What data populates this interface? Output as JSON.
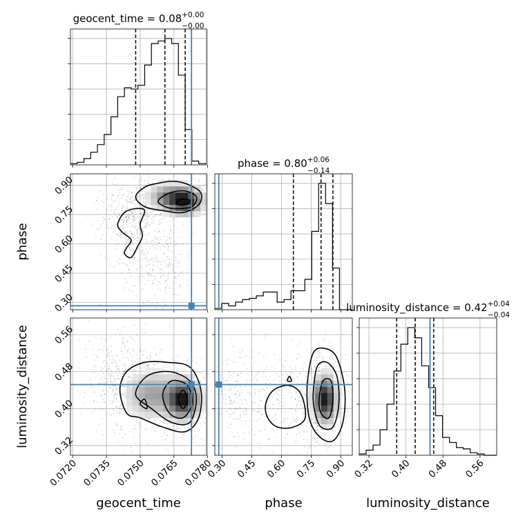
{
  "chart_data": {
    "type": "corner",
    "parameters": [
      "geocent_time",
      "phase",
      "luminosity_distance"
    ],
    "truth": {
      "geocent_time": 0.07728,
      "phase": 0.283,
      "luminosity_distance": 0.452
    },
    "titles": [
      {
        "name": "geocent_time",
        "value": "0.08",
        "upper": "+0.00",
        "lower": "−0.00"
      },
      {
        "name": "phase",
        "value": "0.80",
        "upper": "+0.06",
        "lower": "−0.14"
      },
      {
        "name": "luminosity_distance",
        "value": "0.42",
        "upper": "+0.04",
        "lower": "−0.04"
      }
    ],
    "axes": {
      "geocent_time": {
        "range": [
          0.0719,
          0.07795
        ],
        "ticks": [
          "0.0720",
          "0.0735",
          "0.0750",
          "0.0765",
          "0.0780"
        ],
        "tick_values": [
          0.072,
          0.0735,
          0.075,
          0.0765,
          0.078
        ]
      },
      "phase": {
        "range": [
          0.263,
          0.958
        ],
        "ticks": [
          "0.30",
          "0.45",
          "0.60",
          "0.75",
          "0.90"
        ],
        "tick_values": [
          0.3,
          0.45,
          0.6,
          0.75,
          0.9
        ]
      },
      "luminosity_distance": {
        "range": [
          0.299,
          0.596
        ],
        "ticks": [
          "0.32",
          "0.40",
          "0.48",
          "0.56"
        ],
        "tick_values": [
          0.32,
          0.4,
          0.48,
          0.56
        ]
      }
    },
    "histograms": {
      "geocent_time": {
        "bin_edges": [
          0.0719,
          0.0722,
          0.0725,
          0.0728,
          0.0731,
          0.0734,
          0.0737,
          0.074,
          0.0743,
          0.0746,
          0.0749,
          0.0752,
          0.0755,
          0.0758,
          0.0761,
          0.0764,
          0.0767,
          0.077,
          0.0773,
          0.0776,
          0.07795
        ],
        "counts": [
          1,
          2,
          5,
          10,
          16,
          24,
          38,
          54,
          61,
          60,
          63,
          79,
          96,
          98,
          100,
          96,
          71,
          28,
          3,
          1
        ],
        "quantiles": [
          0.0748,
          0.0761,
          0.077
        ]
      },
      "phase": {
        "bin_edges": [
          0.263,
          0.298,
          0.333,
          0.368,
          0.403,
          0.438,
          0.473,
          0.508,
          0.543,
          0.578,
          0.613,
          0.648,
          0.683,
          0.718,
          0.753,
          0.788,
          0.823,
          0.858,
          0.893,
          0.923,
          0.958
        ],
        "counts": [
          1,
          5,
          3,
          6,
          8,
          9,
          11,
          14,
          14,
          6,
          8,
          15,
          15,
          24,
          62,
          100,
          84,
          33,
          0,
          0
        ],
        "quantiles": [
          0.66,
          0.8,
          0.86
        ]
      },
      "luminosity_distance": {
        "bin_edges": [
          0.299,
          0.314,
          0.329,
          0.344,
          0.359,
          0.374,
          0.389,
          0.404,
          0.419,
          0.434,
          0.449,
          0.464,
          0.479,
          0.494,
          0.509,
          0.524,
          0.539,
          0.554,
          0.569,
          0.584,
          0.596
        ],
        "counts": [
          1,
          4,
          8,
          20,
          40,
          66,
          87,
          100,
          92,
          70,
          53,
          31,
          14,
          10,
          6,
          5,
          2,
          1,
          0,
          0
        ],
        "quantiles": [
          0.38,
          0.42,
          0.46
        ]
      }
    },
    "grid": true
  }
}
